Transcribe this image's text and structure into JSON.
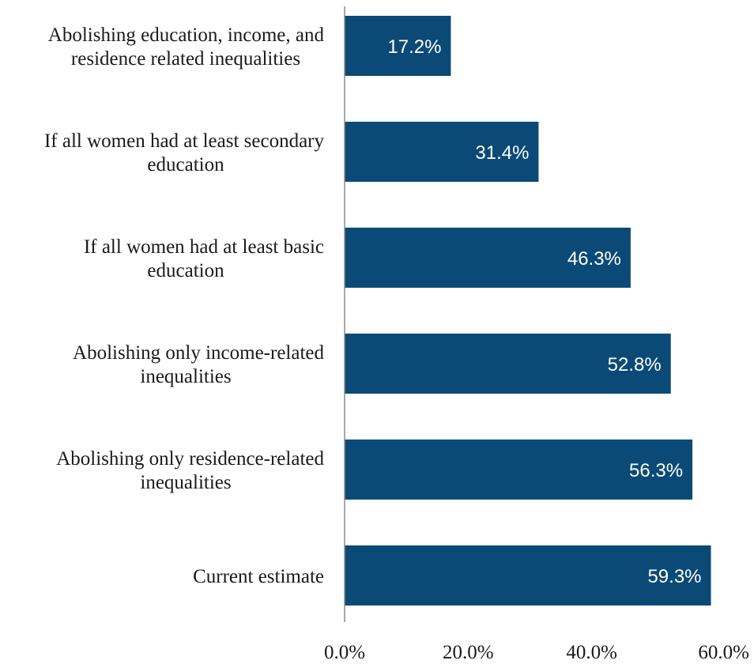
{
  "chart_data": {
    "type": "bar",
    "orientation": "horizontal",
    "categories": [
      [
        "Abolishing education, income, and",
        "residence related inequalities"
      ],
      [
        "If all women had at least secondary",
        "education"
      ],
      [
        "If all women had at least basic",
        "education"
      ],
      [
        "Abolishing only income-related",
        "inequalities"
      ],
      [
        "Abolishing only residence-related",
        "inequalities"
      ],
      [
        "Current estimate"
      ]
    ],
    "values": [
      17.2,
      31.4,
      46.3,
      52.8,
      56.3,
      59.3
    ],
    "data_labels": [
      "17.2%",
      "31.4%",
      "46.3%",
      "52.8%",
      "56.3%",
      "59.3%"
    ],
    "x_ticks": [
      0,
      20,
      40,
      60
    ],
    "x_tick_labels": [
      "0.0%",
      "20.0%",
      "40.0%",
      "60.0%"
    ],
    "xlim": [
      0,
      60
    ],
    "title": "",
    "xlabel": "",
    "ylabel": "",
    "grid": false,
    "legend": "none",
    "bar_color": "#0b4a76",
    "axis_color": "#8c8c8c"
  }
}
